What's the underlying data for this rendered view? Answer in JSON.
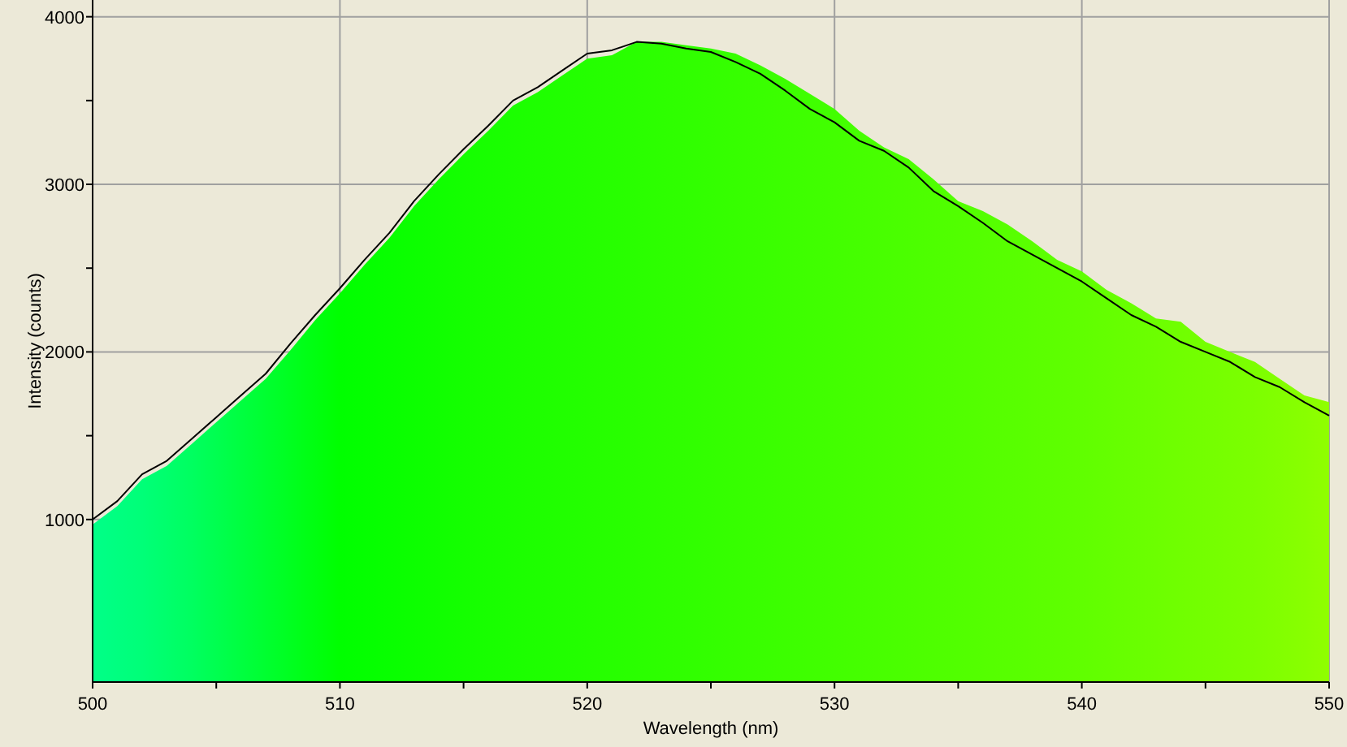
{
  "chart_data": {
    "type": "area",
    "xlabel": "Wavelength (nm)",
    "ylabel": "Intensity (counts)",
    "xlim": [
      500,
      550
    ],
    "xticks": [
      500,
      {
        "value": 505,
        "label": null
      },
      510,
      {
        "value": 515,
        "label": null
      },
      520,
      {
        "value": 525,
        "label": null
      },
      530,
      {
        "value": 535,
        "label": null
      },
      540,
      {
        "value": 545,
        "label": null
      },
      550
    ],
    "ylim": [
      30,
      4100
    ],
    "yticks": [
      1000,
      {
        "value": 1500,
        "label": null
      },
      2000,
      {
        "value": 2500,
        "label": null
      },
      3000,
      {
        "value": 3500,
        "label": null
      },
      4000
    ],
    "grid": true,
    "x": [
      500,
      501,
      502,
      503,
      504,
      505,
      506,
      507,
      508,
      509,
      510,
      511,
      512,
      513,
      514,
      515,
      516,
      517,
      518,
      519,
      520,
      521,
      522,
      523,
      524,
      525,
      526,
      527,
      528,
      529,
      530,
      531,
      532,
      533,
      534,
      535,
      536,
      537,
      538,
      539,
      540,
      541,
      542,
      543,
      544,
      545,
      546,
      547,
      548,
      549,
      550
    ],
    "series": [
      {
        "values": [
          970,
          1080,
          1240,
          1320,
          1450,
          1580,
          1710,
          1840,
          2010,
          2190,
          2350,
          2520,
          2680,
          2870,
          3030,
          3180,
          3320,
          3470,
          3550,
          3650,
          3750,
          3770,
          3850,
          3850,
          3830,
          3810,
          3780,
          3710,
          3630,
          3540,
          3450,
          3320,
          3220,
          3150,
          3030,
          2900,
          2840,
          2760,
          2660,
          2550,
          2480,
          2370,
          2290,
          2200,
          2180,
          2060,
          2000,
          1940,
          1840,
          1740,
          1700
        ],
        "colors": [
          "#00ff88",
          "#00ff80",
          "#00ff78",
          "#00ff6c",
          "#00ff60",
          "#00ff50",
          "#00ff40",
          "#00ff30",
          "#00ff20",
          "#00ff10",
          "#00ff00",
          "#04ff00",
          "#08ff00",
          "#0cff00",
          "#10ff00",
          "#14ff00",
          "#18ff00",
          "#1bff00",
          "#1eff00",
          "#21ff00",
          "#24ff00",
          "#27ff00",
          "#2aff00",
          "#2dff00",
          "#30ff00",
          "#33ff00",
          "#36ff00",
          "#39ff00",
          "#3cff00",
          "#3fff00",
          "#42ff00",
          "#45ff00",
          "#48ff00",
          "#4bff00",
          "#4eff00",
          "#51ff00",
          "#54ff00",
          "#57ff00",
          "#5aff00",
          "#5dff00",
          "#60ff00",
          "#64ff00",
          "#68ff00",
          "#6cff00",
          "#70ff00",
          "#74ff00",
          "#78ff00",
          "#7cff00",
          "#82ff00",
          "#88ff00",
          "#90ff00"
        ]
      },
      {
        "type": "line",
        "color": "#000000",
        "values": [
          1000,
          1110,
          1270,
          1350,
          1480,
          1610,
          1740,
          1870,
          2050,
          2220,
          2380,
          2550,
          2710,
          2900,
          3060,
          3210,
          3350,
          3500,
          3580,
          3680,
          3780,
          3800,
          3850,
          3840,
          3810,
          3790,
          3730,
          3660,
          3560,
          3450,
          3370,
          3260,
          3200,
          3100,
          2960,
          2870,
          2770,
          2660,
          2580,
          2500,
          2420,
          2320,
          2220,
          2150,
          2060,
          2000,
          1940,
          1850,
          1790,
          1700,
          1620
        ]
      }
    ]
  }
}
